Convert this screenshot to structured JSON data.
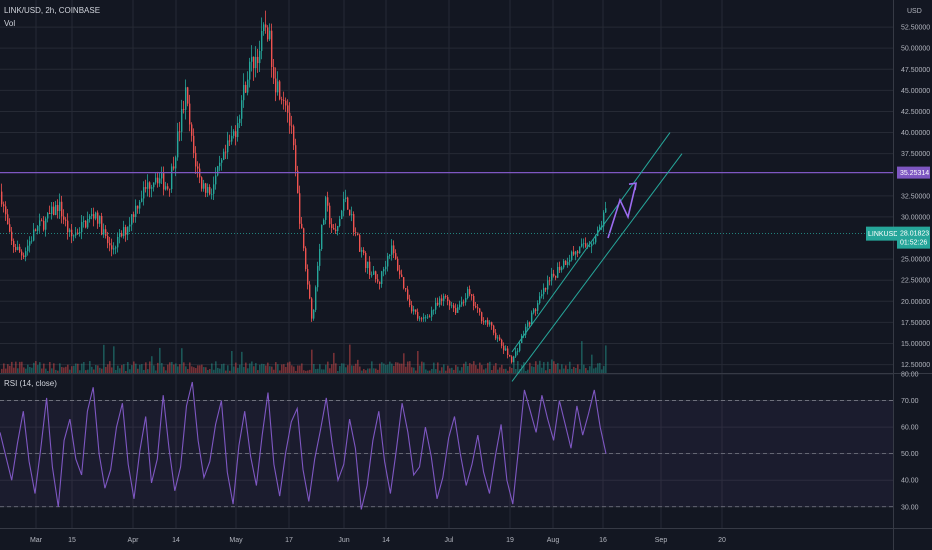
{
  "header": {
    "symbol_line": "LINK/USD, 2h, COINBASE",
    "volume_label": "Vol",
    "currency": "USD"
  },
  "rsi_panel": {
    "title": "RSI (14, close)"
  },
  "colors": {
    "bg": "#131722",
    "grid": "#262a35",
    "up": "#26a69a",
    "down": "#ef5350",
    "rsi": "#7e57c2",
    "channel": "#26a69a",
    "level": "#7e57c2",
    "arrow": "#9c6cf0"
  },
  "chart_data": [
    {
      "type": "candlestick",
      "title": "LINK/USD, 2h, COINBASE",
      "x": [
        "Mar",
        "15",
        "Apr",
        "14",
        "May",
        "17",
        "Jun",
        "14",
        "Jul",
        "19",
        "Aug",
        "16",
        "Sep",
        "20"
      ],
      "y_ticks": [
        "52.50000",
        "50.00000",
        "47.50000",
        "45.00000",
        "42.50000",
        "40.00000",
        "37.50000",
        "32.50000",
        "30.00000",
        "25.00000",
        "22.50000",
        "20.00000",
        "17.50000",
        "15.00000",
        "12.50000"
      ],
      "ylim": [
        11.5,
        55
      ],
      "ylabel": "USD",
      "price_path": [
        {
          "x": 0,
          "y": 33.0
        },
        {
          "x": 10,
          "y": 27.0
        },
        {
          "x": 22,
          "y": 25.5
        },
        {
          "x": 35,
          "y": 28.5
        },
        {
          "x": 45,
          "y": 29.5
        },
        {
          "x": 58,
          "y": 31.5
        },
        {
          "x": 70,
          "y": 27.5
        },
        {
          "x": 82,
          "y": 29.0
        },
        {
          "x": 95,
          "y": 30.5
        },
        {
          "x": 110,
          "y": 26.0
        },
        {
          "x": 125,
          "y": 28.5
        },
        {
          "x": 140,
          "y": 32.5
        },
        {
          "x": 155,
          "y": 35.0
        },
        {
          "x": 168,
          "y": 33.5
        },
        {
          "x": 178,
          "y": 40.0
        },
        {
          "x": 185,
          "y": 44.5
        },
        {
          "x": 192,
          "y": 38.0
        },
        {
          "x": 200,
          "y": 34.0
        },
        {
          "x": 210,
          "y": 33.0
        },
        {
          "x": 222,
          "y": 36.5
        },
        {
          "x": 235,
          "y": 40.5
        },
        {
          "x": 248,
          "y": 47.5
        },
        {
          "x": 258,
          "y": 49.5
        },
        {
          "x": 266,
          "y": 53.0
        },
        {
          "x": 275,
          "y": 46.0
        },
        {
          "x": 285,
          "y": 44.0
        },
        {
          "x": 292,
          "y": 39.0
        },
        {
          "x": 298,
          "y": 31.0
        },
        {
          "x": 306,
          "y": 23.0
        },
        {
          "x": 312,
          "y": 17.5
        },
        {
          "x": 318,
          "y": 26.0
        },
        {
          "x": 325,
          "y": 31.5
        },
        {
          "x": 334,
          "y": 27.5
        },
        {
          "x": 345,
          "y": 32.5
        },
        {
          "x": 355,
          "y": 28.0
        },
        {
          "x": 365,
          "y": 24.5
        },
        {
          "x": 378,
          "y": 22.0
        },
        {
          "x": 390,
          "y": 26.5
        },
        {
          "x": 400,
          "y": 23.0
        },
        {
          "x": 410,
          "y": 19.5
        },
        {
          "x": 420,
          "y": 17.5
        },
        {
          "x": 432,
          "y": 19.0
        },
        {
          "x": 445,
          "y": 20.5
        },
        {
          "x": 455,
          "y": 19.0
        },
        {
          "x": 467,
          "y": 21.0
        },
        {
          "x": 478,
          "y": 18.5
        },
        {
          "x": 490,
          "y": 17.0
        },
        {
          "x": 502,
          "y": 14.5
        },
        {
          "x": 512,
          "y": 13.0
        },
        {
          "x": 522,
          "y": 16.0
        },
        {
          "x": 532,
          "y": 18.5
        },
        {
          "x": 545,
          "y": 21.5
        },
        {
          "x": 558,
          "y": 24.0
        },
        {
          "x": 570,
          "y": 25.5
        },
        {
          "x": 585,
          "y": 26.5
        },
        {
          "x": 597,
          "y": 28.0
        },
        {
          "x": 606,
          "y": 31.0
        }
      ],
      "annotations": {
        "level_line": {
          "value": 35.25314,
          "label": "35.25314"
        },
        "last_price": {
          "symbol": "LINKUSD",
          "value": "28.01823",
          "countdown": "01:52:26"
        },
        "channel": [
          {
            "from": [
              512,
              14.0
            ],
            "to": [
              670,
              40.0
            ]
          },
          {
            "from": [
              512,
              10.5
            ],
            "to": [
              682,
              37.5
            ]
          }
        ],
        "projection_arrow": [
          [
            608,
            27.5
          ],
          [
            620,
            32.0
          ],
          [
            628,
            30.0
          ],
          [
            636,
            34.0
          ]
        ]
      }
    },
    {
      "type": "line",
      "title": "RSI (14, close)",
      "y_ticks": [
        "80.00",
        "70.00",
        "60.00",
        "50.00",
        "40.00",
        "30.00"
      ],
      "ylim": [
        22,
        80
      ],
      "bands": [
        30,
        70
      ],
      "midline": 50,
      "series": [
        {
          "values": [
            58,
            49,
            40,
            54,
            66,
            47,
            35,
            52,
            71,
            45,
            30,
            55,
            63,
            48,
            42,
            66,
            75,
            50,
            37,
            44,
            60,
            69,
            46,
            33,
            51,
            64,
            39,
            48,
            72,
            52,
            36,
            45,
            68,
            77,
            55,
            41,
            47,
            61,
            70,
            43,
            31,
            53,
            66,
            49,
            38,
            57,
            73,
            46,
            34,
            50,
            62,
            67,
            44,
            32,
            48,
            59,
            71,
            54,
            40,
            46,
            63,
            52,
            29,
            38,
            55,
            66,
            47,
            35,
            51,
            69,
            58,
            42,
            45,
            60,
            49,
            33,
            41,
            56,
            64,
            50,
            38,
            46,
            57,
            43,
            35,
            49,
            61,
            40,
            31,
            52,
            74,
            66,
            58,
            72,
            63,
            55,
            70,
            61,
            52,
            68,
            57,
            65,
            74,
            60,
            50
          ]
        }
      ]
    }
  ]
}
